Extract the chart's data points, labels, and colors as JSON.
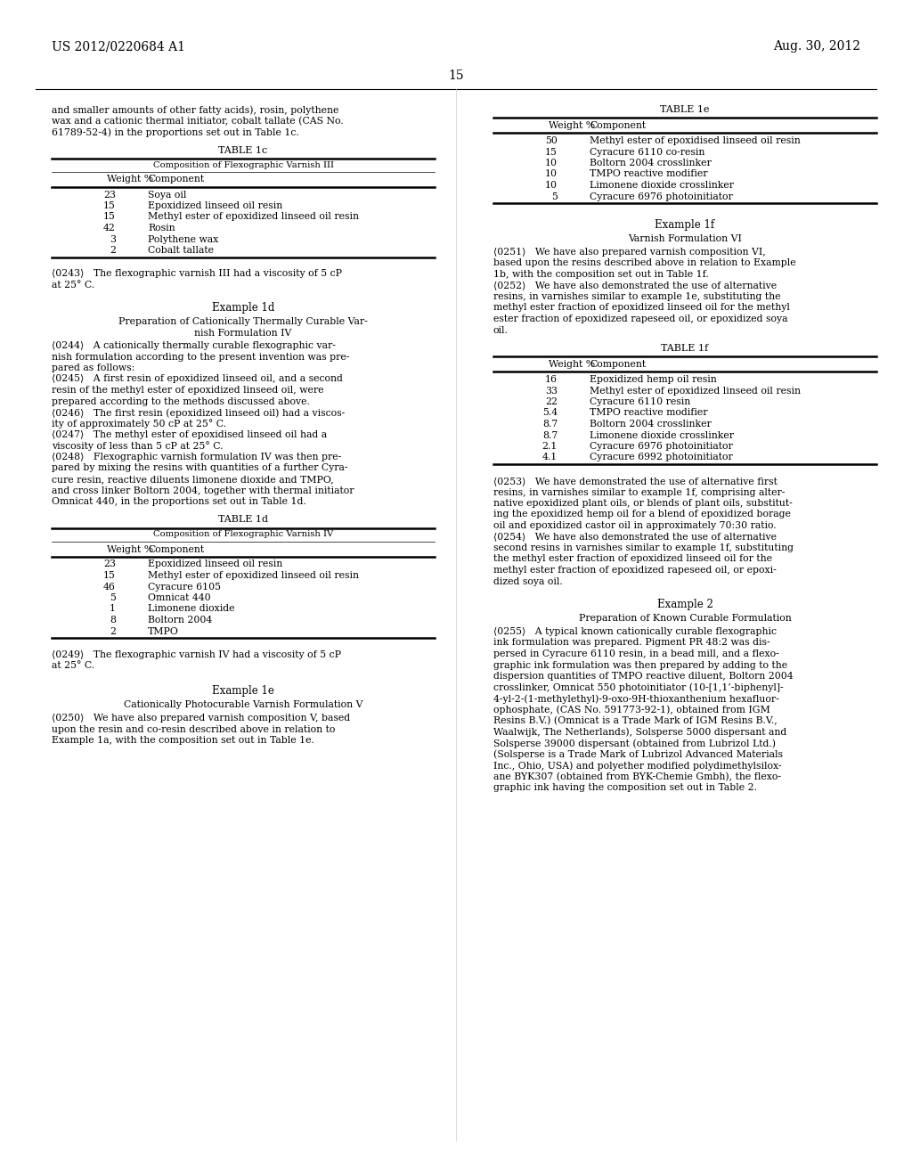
{
  "background_color": "#ffffff",
  "page_number": "15",
  "header_left": "US 2012/0220684 A1",
  "header_right": "Aug. 30, 2012",
  "left_col": {
    "intro_text": [
      "and smaller amounts of other fatty acids), rosin, polythene",
      "wax and a cationic thermal initiator, cobalt tallate (CAS No.",
      "61789-52-4) in the proportions set out in Table 1c."
    ],
    "table_1c": {
      "title": "TABLE 1c",
      "subtitle": "Composition of Flexographic Varnish III",
      "headers": [
        "Weight %",
        "Component"
      ],
      "rows": [
        [
          "23",
          "Soya oil"
        ],
        [
          "15",
          "Epoxidized linseed oil resin"
        ],
        [
          "15",
          "Methyl ester of epoxidized linseed oil resin"
        ],
        [
          "42",
          "Rosin"
        ],
        [
          "3",
          "Polythene wax"
        ],
        [
          "2",
          "Cobalt tallate"
        ]
      ]
    },
    "example_1d_title": "Example 1d",
    "example_1d_subtitle1": "Preparation of Cationically Thermally Curable Var-",
    "example_1d_subtitle2": "nish Formulation IV",
    "table_1d": {
      "title": "TABLE 1d",
      "subtitle": "Composition of Flexographic Varnish IV",
      "headers": [
        "Weight %",
        "Component"
      ],
      "rows": [
        [
          "23",
          "Epoxidized linseed oil resin"
        ],
        [
          "15",
          "Methyl ester of epoxidized linseed oil resin"
        ],
        [
          "46",
          "Cyracure 6105"
        ],
        [
          "5",
          "Omnicat 440"
        ],
        [
          "1",
          "Limonene dioxide"
        ],
        [
          "8",
          "Boltorn 2004"
        ],
        [
          "2",
          "TMPO"
        ]
      ]
    },
    "example_1e_title": "Example 1e",
    "example_1e_subtitle": "Cationically Photocurable Varnish Formulation V"
  },
  "right_col": {
    "table_1e": {
      "title": "TABLE 1e",
      "headers": [
        "Weight %",
        "Component"
      ],
      "rows": [
        [
          "50",
          "Methyl ester of epoxidised linseed oil resin"
        ],
        [
          "15",
          "Cyracure 6110 co-resin"
        ],
        [
          "10",
          "Boltorn 2004 crosslinker"
        ],
        [
          "10",
          "TMPO reactive modifier"
        ],
        [
          "10",
          "Limonene dioxide crosslinker"
        ],
        [
          "5",
          "Cyracure 6976 photoinitiator"
        ]
      ]
    },
    "example_1f_title": "Example 1f",
    "example_1f_subtitle": "Varnish Formulation VI",
    "table_1f": {
      "title": "TABLE 1f",
      "headers": [
        "Weight %",
        "Component"
      ],
      "rows": [
        [
          "16",
          "Epoxidized hemp oil resin"
        ],
        [
          "33",
          "Methyl ester of epoxidized linseed oil resin"
        ],
        [
          "22",
          "Cyracure 6110 resin"
        ],
        [
          "5.4",
          "TMPO reactive modifier"
        ],
        [
          "8.7",
          "Boltorn 2004 crosslinker"
        ],
        [
          "8.7",
          "Limonene dioxide crosslinker"
        ],
        [
          "2.1",
          "Cyracure 6976 photoinitiator"
        ],
        [
          "4.1",
          "Cyracure 6992 photoinitiator"
        ]
      ]
    },
    "example_2_title": "Example 2",
    "example_2_subtitle": "Preparation of Known Curable Formulation"
  }
}
